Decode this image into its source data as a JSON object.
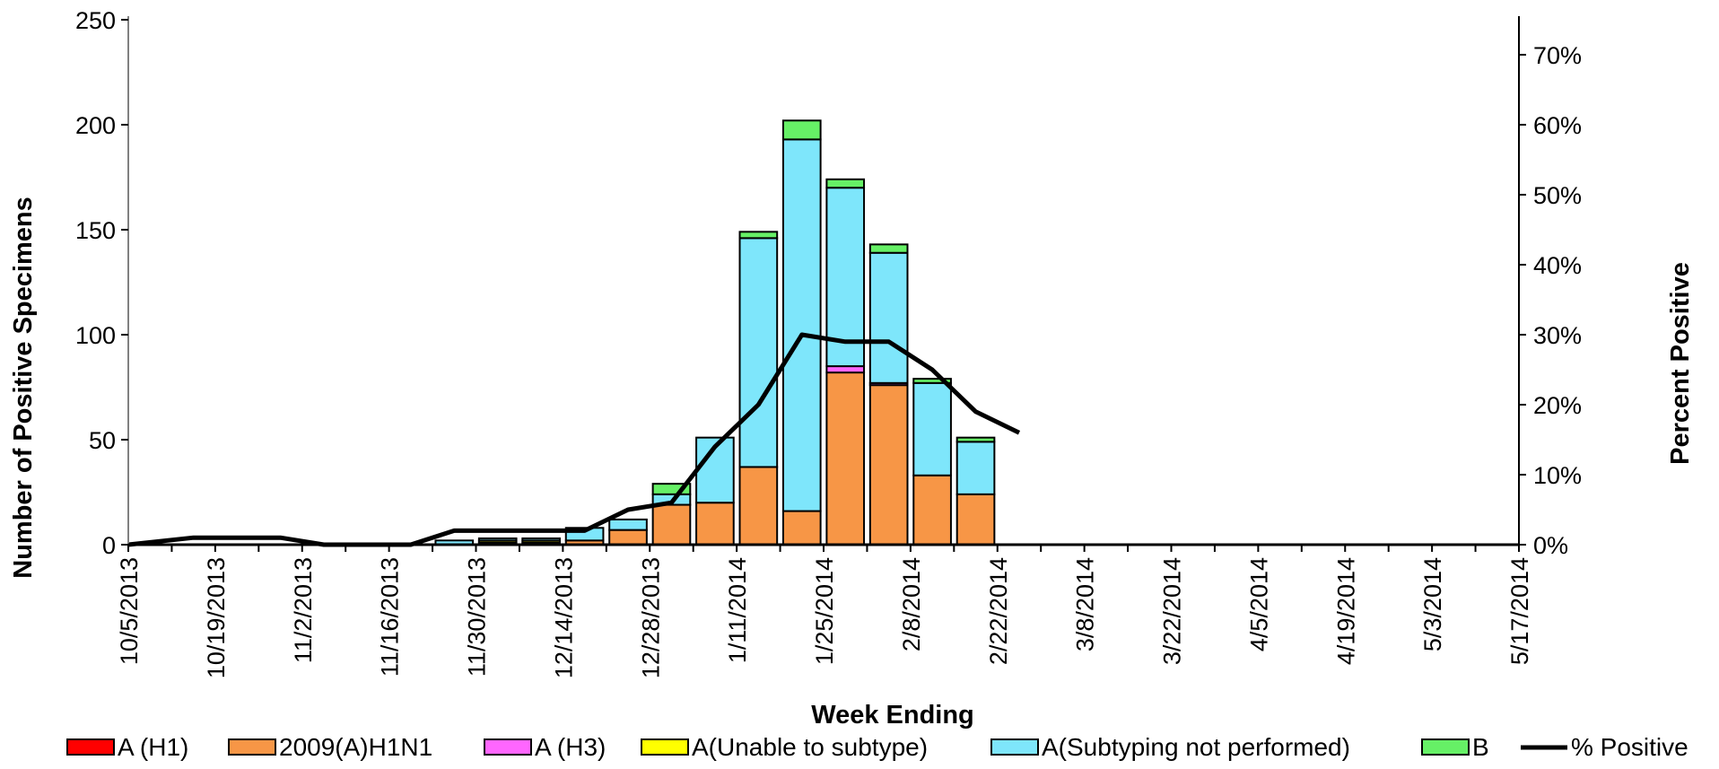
{
  "chart_data": {
    "type": "bar",
    "stacked": true,
    "title": "",
    "xlabel": "Week Ending",
    "ylabel": "Number of  Positive Specimens",
    "y2label": "Percent Positive",
    "ylim": [
      0,
      250
    ],
    "y2lim": [
      0,
      0.75
    ],
    "yticks": [
      "0",
      "50",
      "100",
      "150",
      "200",
      "250"
    ],
    "y2ticks": [
      "0%",
      "10%",
      "20%",
      "30%",
      "40%",
      "50%",
      "60%",
      "70%"
    ],
    "x_tick_labels": [
      "10/5/2013",
      "10/19/2013",
      "11/2/2013",
      "11/16/2013",
      "11/30/2013",
      "12/14/2013",
      "12/28/2013",
      "1/11/2014",
      "1/25/2014",
      "2/8/2014",
      "2/22/2014",
      "3/8/2014",
      "3/22/2014",
      "4/5/2014",
      "4/19/2014",
      "5/3/2014",
      "5/17/2014"
    ],
    "legend_position": "bottom",
    "series": [
      {
        "name": "A (H1)",
        "color": "#ff0000",
        "kind": "bar",
        "values": [
          0,
          0,
          0,
          0,
          0,
          0,
          0,
          0,
          0,
          0,
          0,
          0,
          0,
          0,
          0,
          0,
          0,
          0,
          0,
          0,
          0,
          0,
          0,
          0,
          0,
          0,
          0,
          0,
          0,
          0,
          0,
          0,
          0
        ]
      },
      {
        "name": "2009(A)H1N1",
        "color": "#f79646",
        "kind": "bar",
        "values": [
          0,
          0,
          0,
          0,
          0,
          0,
          0,
          0,
          1,
          1,
          2,
          7,
          19,
          20,
          37,
          16,
          82,
          76,
          33,
          24,
          0,
          0,
          0,
          0,
          0,
          0,
          0,
          0,
          0,
          0,
          0,
          0,
          0
        ]
      },
      {
        "name": "A (H3)",
        "color": "#ff66ff",
        "kind": "bar",
        "values": [
          0,
          0,
          0,
          0,
          0,
          0,
          0,
          0,
          0,
          0,
          0,
          0,
          0,
          0,
          0,
          0,
          3,
          1,
          0,
          0,
          0,
          0,
          0,
          0,
          0,
          0,
          0,
          0,
          0,
          0,
          0,
          0,
          0
        ]
      },
      {
        "name": "A(Unable to subtype)",
        "color": "#ffff00",
        "kind": "bar",
        "values": [
          0,
          0,
          0,
          0,
          0,
          0,
          0,
          0,
          1,
          1,
          0,
          0,
          0,
          0,
          0,
          0,
          0,
          0,
          0,
          0,
          0,
          0,
          0,
          0,
          0,
          0,
          0,
          0,
          0,
          0,
          0,
          0,
          0
        ]
      },
      {
        "name": "A(Subtyping not performed)",
        "color": "#7ee6fb",
        "kind": "bar",
        "values": [
          0,
          0,
          0,
          0,
          0,
          0,
          0,
          2,
          1,
          1,
          6,
          5,
          5,
          31,
          109,
          177,
          85,
          62,
          44,
          25,
          0,
          0,
          0,
          0,
          0,
          0,
          0,
          0,
          0,
          0,
          0,
          0,
          0
        ]
      },
      {
        "name": "B",
        "color": "#66f066",
        "kind": "bar",
        "values": [
          0,
          0,
          0,
          0,
          0,
          0,
          0,
          0,
          0,
          0,
          0,
          0,
          5,
          0,
          3,
          9,
          4,
          4,
          2,
          2,
          0,
          0,
          0,
          0,
          0,
          0,
          0,
          0,
          0,
          0,
          0,
          0,
          0
        ]
      },
      {
        "name": "% Positive",
        "color": "#000000",
        "kind": "line",
        "values": [
          0,
          0.01,
          0.01,
          0.01,
          0,
          0,
          0,
          0.02,
          0.02,
          0.02,
          0.02,
          0.05,
          0.06,
          0.14,
          0.2,
          0.3,
          0.29,
          0.29,
          0.25,
          0.19,
          0.16
        ]
      }
    ]
  }
}
